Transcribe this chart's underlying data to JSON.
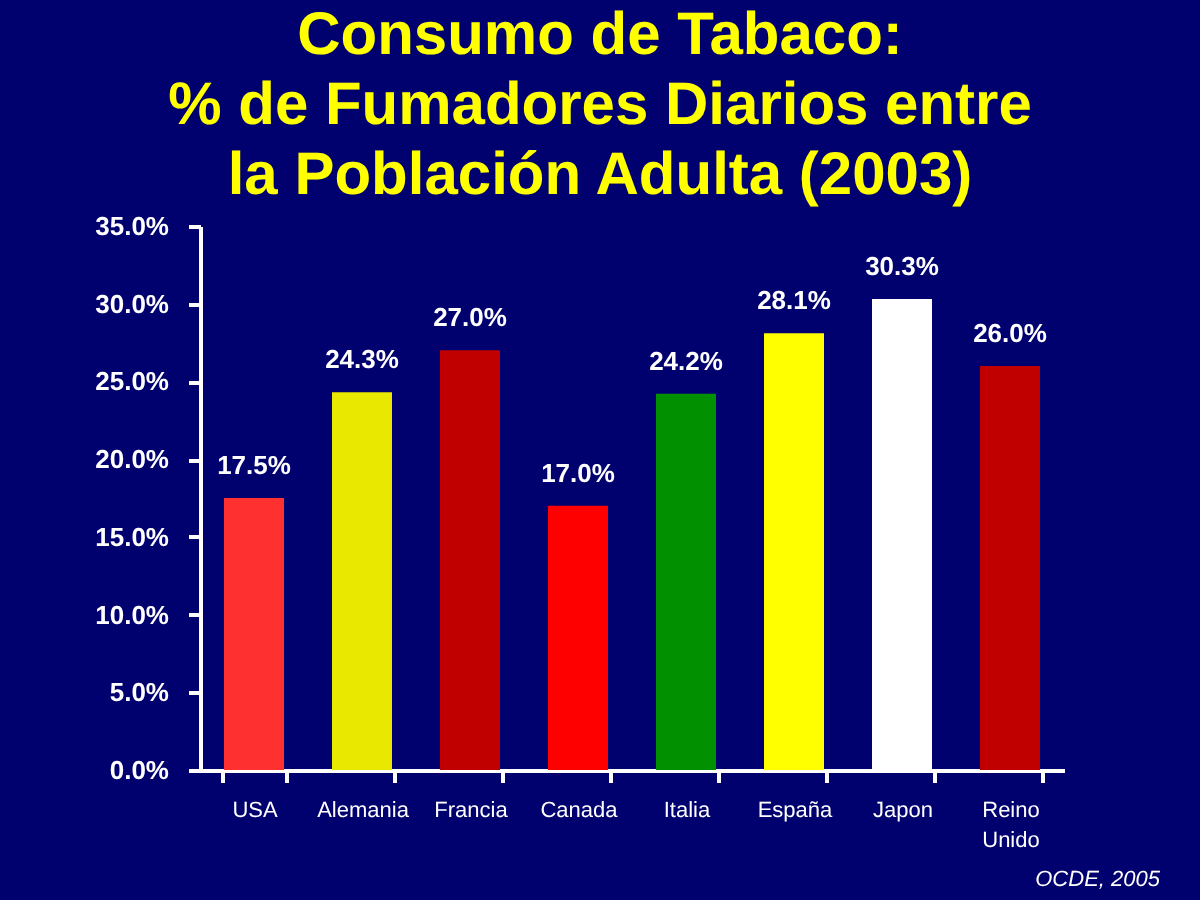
{
  "chart_data": {
    "type": "bar",
    "title": "Consumo de Tabaco:\n% de Fumadores Diarios entre\nla Población Adulta (2003)",
    "categories": [
      "USA",
      "Alemania",
      "Francia",
      "Canada",
      "Italia",
      "España",
      "Japon",
      "Reino Unido"
    ],
    "values": [
      17.5,
      24.3,
      27.0,
      17.0,
      24.2,
      28.1,
      30.3,
      26.0
    ],
    "value_labels": [
      "17.5%",
      "24.3%",
      "27.0%",
      "17.0%",
      "24.2%",
      "28.1%",
      "30.3%",
      "26.0%"
    ],
    "colors": [
      "#ff3030",
      "#e8e800",
      "#c00000",
      "#ff0000",
      "#009000",
      "#ffff00",
      "#ffffff",
      "#c00000"
    ],
    "ylim": [
      0,
      35
    ],
    "yticks": [
      {
        "value": 0,
        "label": "0.0%"
      },
      {
        "value": 5,
        "label": "5.0%"
      },
      {
        "value": 10,
        "label": "10.0%"
      },
      {
        "value": 15,
        "label": "15.0%"
      },
      {
        "value": 20,
        "label": "20.0%"
      },
      {
        "value": 25,
        "label": "25.0%"
      },
      {
        "value": 30,
        "label": "30.0%"
      },
      {
        "value": 35,
        "label": "35.0%"
      }
    ],
    "annotations": [
      "OCDE, 2005"
    ]
  }
}
